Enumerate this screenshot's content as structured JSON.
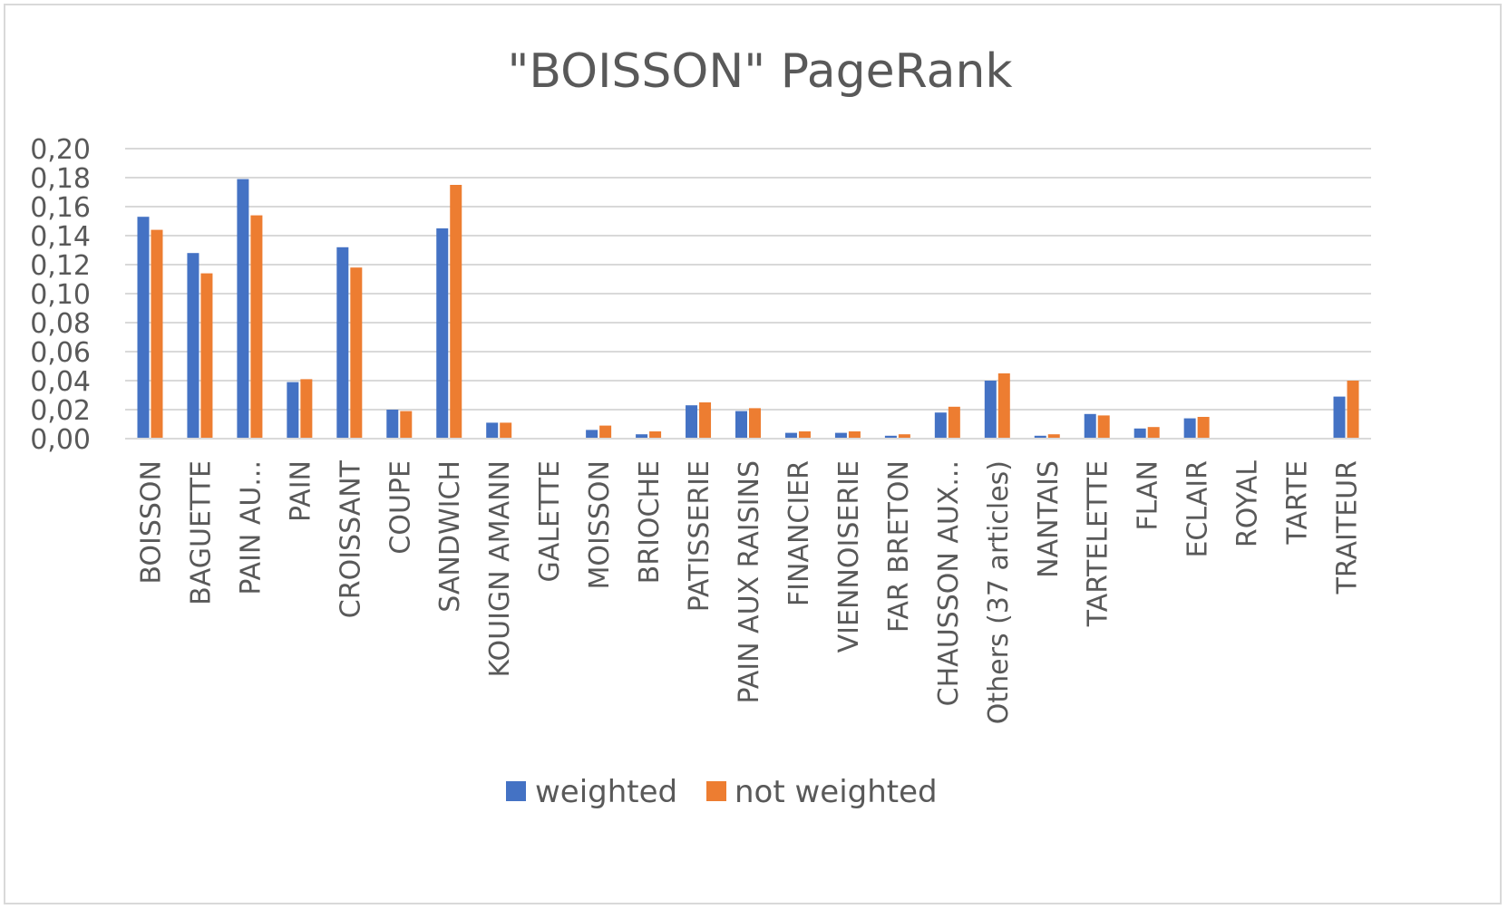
{
  "chart_data": {
    "type": "bar",
    "title": "\"BOISSON\" PageRank",
    "xlabel": "",
    "ylabel": "",
    "ylim": [
      0,
      0.2
    ],
    "ytick_step": 0.02,
    "ytick_labels": [
      "0,00",
      "0,02",
      "0,04",
      "0,06",
      "0,08",
      "0,10",
      "0,12",
      "0,14",
      "0,16",
      "0,18",
      "0,20"
    ],
    "grid": true,
    "legend_position": "bottom",
    "categories": [
      "BOISSON",
      "BAGUETTE",
      "PAIN AU...",
      "PAIN",
      "CROISSANT",
      "COUPE",
      "SANDWICH",
      "KOUIGN AMANN",
      "GALETTE",
      "MOISSON",
      "BRIOCHE",
      "PATISSERIE",
      "PAIN AUX RAISINS",
      "FINANCIER",
      "VIENNOISERIE",
      "FAR BRETON",
      "CHAUSSON AUX...",
      "Others (37 articles)",
      "NANTAIS",
      "TARTELETTE",
      "FLAN",
      "ECLAIR",
      "ROYAL",
      "TARTE",
      "TRAITEUR"
    ],
    "series": [
      {
        "name": "weighted",
        "color": "#4472c4",
        "values": [
          0.153,
          0.128,
          0.179,
          0.039,
          0.132,
          0.02,
          0.145,
          0.011,
          0.0,
          0.006,
          0.003,
          0.023,
          0.019,
          0.004,
          0.004,
          0.002,
          0.018,
          0.04,
          0.002,
          0.017,
          0.007,
          0.014,
          0.0,
          0.0,
          0.029
        ]
      },
      {
        "name": "not weighted",
        "color": "#ed7d31",
        "values": [
          0.144,
          0.114,
          0.154,
          0.041,
          0.118,
          0.019,
          0.175,
          0.011,
          0.0,
          0.009,
          0.005,
          0.025,
          0.021,
          0.005,
          0.005,
          0.003,
          0.022,
          0.045,
          0.003,
          0.016,
          0.008,
          0.015,
          0.0,
          0.0,
          0.04
        ]
      }
    ]
  }
}
